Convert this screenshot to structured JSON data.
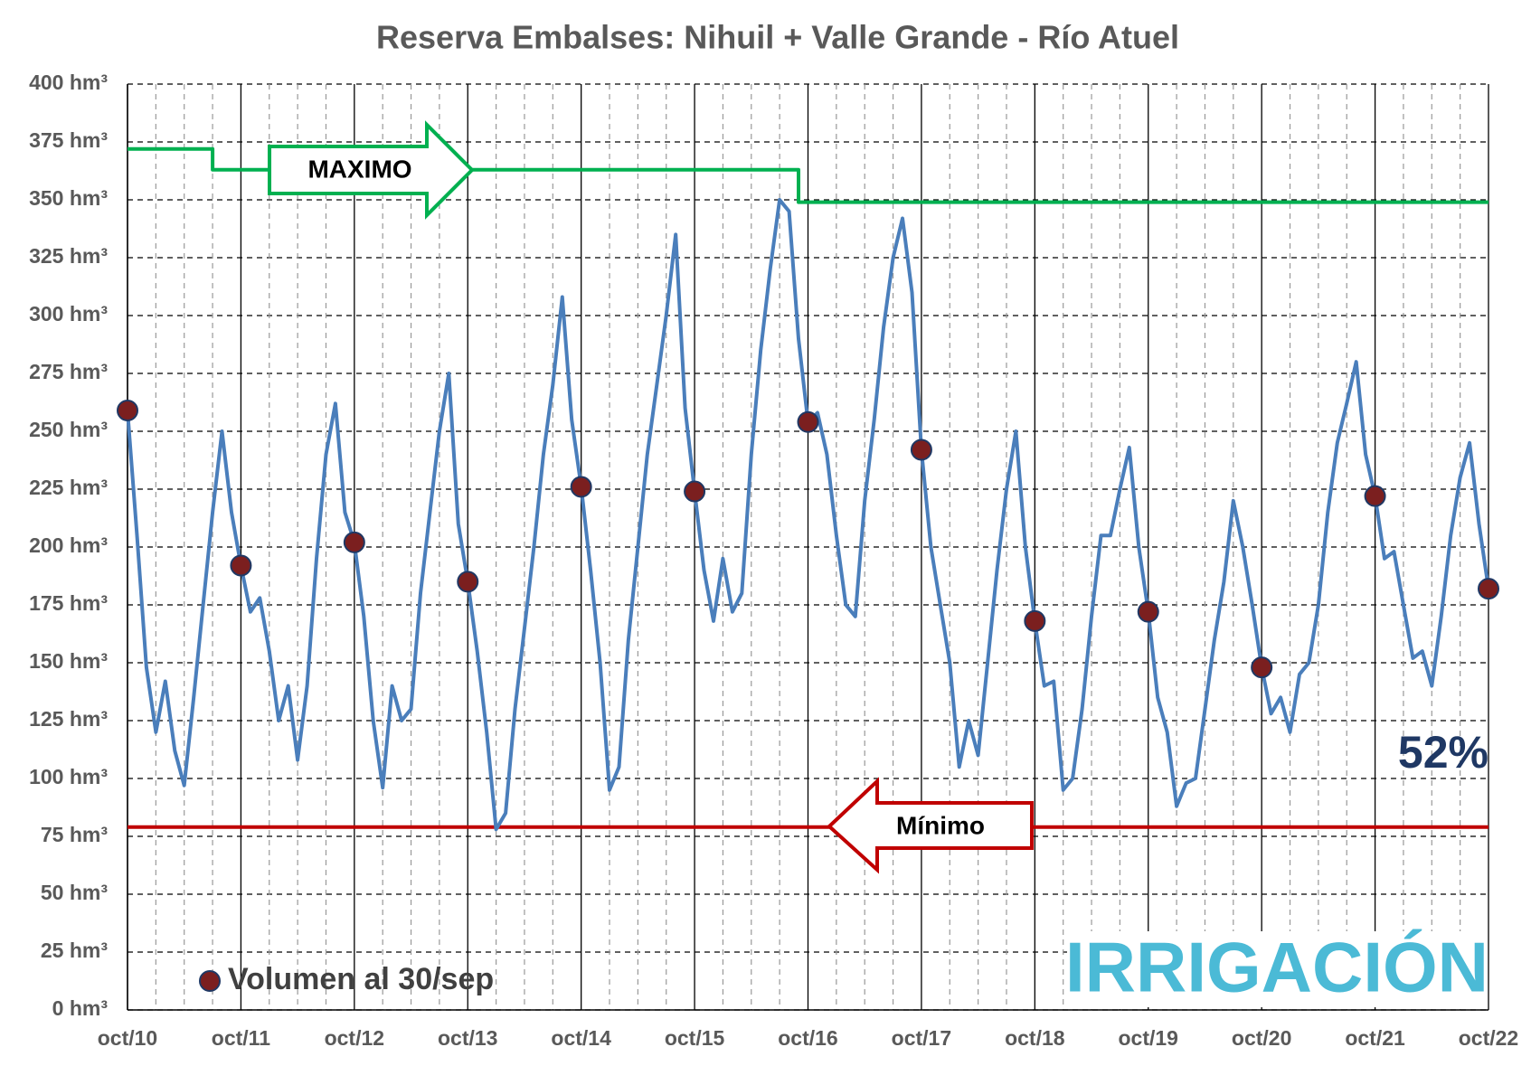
{
  "chart_data": {
    "type": "line",
    "title": "Reserva Embalses: Nihuil + Valle Grande - Río Atuel",
    "xlim": [
      "2010-10",
      "2022-10"
    ],
    "xticks": [
      {
        "value": "2010-10",
        "label": "oct/10"
      },
      {
        "value": "2011-10",
        "label": "oct/11"
      },
      {
        "value": "2012-10",
        "label": "oct/12"
      },
      {
        "value": "2013-10",
        "label": "oct/13"
      },
      {
        "value": "2014-10",
        "label": "oct/14"
      },
      {
        "value": "2015-10",
        "label": "oct/15"
      },
      {
        "value": "2016-10",
        "label": "oct/16"
      },
      {
        "value": "2017-10",
        "label": "oct/17"
      },
      {
        "value": "2018-10",
        "label": "oct/18"
      },
      {
        "value": "2019-10",
        "label": "oct/19"
      },
      {
        "value": "2020-10",
        "label": "oct/20"
      },
      {
        "value": "2021-10",
        "label": "oct/21"
      },
      {
        "value": "2022-10",
        "label": "oct/22"
      }
    ],
    "ylim": [
      0,
      400
    ],
    "yticks": [
      {
        "value": 0,
        "label": "0 hm³"
      },
      {
        "value": 25,
        "label": "25 hm³"
      },
      {
        "value": 50,
        "label": "50 hm³"
      },
      {
        "value": 75,
        "label": "75 hm³"
      },
      {
        "value": 100,
        "label": "100 hm³"
      },
      {
        "value": 125,
        "label": "125 hm³"
      },
      {
        "value": 150,
        "label": "150 hm³"
      },
      {
        "value": 175,
        "label": "175 hm³"
      },
      {
        "value": 200,
        "label": "200 hm³"
      },
      {
        "value": 225,
        "label": "225 hm³"
      },
      {
        "value": 250,
        "label": "250 hm³"
      },
      {
        "value": 275,
        "label": "275 hm³"
      },
      {
        "value": 300,
        "label": "300 hm³"
      },
      {
        "value": 325,
        "label": "325 hm³"
      },
      {
        "value": 350,
        "label": "350 hm³"
      },
      {
        "value": 375,
        "label": "375 hm³"
      },
      {
        "value": 400,
        "label": "400 hm³"
      }
    ],
    "grid": true,
    "series": [
      {
        "color": "#4a7ebb",
        "x": [
          "2010-10",
          "2010-11",
          "2010-12",
          "2011-01",
          "2011-02",
          "2011-03",
          "2011-04",
          "2011-05",
          "2011-06",
          "2011-07",
          "2011-08",
          "2011-09",
          "2011-10",
          "2011-11",
          "2011-12",
          "2012-01",
          "2012-02",
          "2012-03",
          "2012-04",
          "2012-05",
          "2012-06",
          "2012-07",
          "2012-08",
          "2012-09",
          "2012-10",
          "2012-11",
          "2012-12",
          "2013-01",
          "2013-02",
          "2013-03",
          "2013-04",
          "2013-05",
          "2013-06",
          "2013-07",
          "2013-08",
          "2013-09",
          "2013-10",
          "2013-11",
          "2013-12",
          "2014-01",
          "2014-02",
          "2014-03",
          "2014-04",
          "2014-05",
          "2014-06",
          "2014-07",
          "2014-08",
          "2014-09",
          "2014-10",
          "2014-11",
          "2014-12",
          "2015-01",
          "2015-02",
          "2015-03",
          "2015-04",
          "2015-05",
          "2015-06",
          "2015-07",
          "2015-08",
          "2015-09",
          "2015-10",
          "2015-11",
          "2015-12",
          "2016-01",
          "2016-02",
          "2016-03",
          "2016-04",
          "2016-05",
          "2016-06",
          "2016-07",
          "2016-08",
          "2016-09",
          "2016-10",
          "2016-11",
          "2016-12",
          "2017-01",
          "2017-02",
          "2017-03",
          "2017-04",
          "2017-05",
          "2017-06",
          "2017-07",
          "2017-08",
          "2017-09",
          "2017-10",
          "2017-11",
          "2017-12",
          "2018-01",
          "2018-02",
          "2018-03",
          "2018-04",
          "2018-05",
          "2018-06",
          "2018-07",
          "2018-08",
          "2018-09",
          "2018-10",
          "2018-11",
          "2018-12",
          "2019-01",
          "2019-02",
          "2019-03",
          "2019-04",
          "2019-05",
          "2019-06",
          "2019-07",
          "2019-08",
          "2019-09",
          "2019-10",
          "2019-11",
          "2019-12",
          "2020-01",
          "2020-02",
          "2020-03",
          "2020-04",
          "2020-05",
          "2020-06",
          "2020-07",
          "2020-08",
          "2020-09",
          "2020-10",
          "2020-11",
          "2020-12",
          "2021-01",
          "2021-02",
          "2021-03",
          "2021-04",
          "2021-05",
          "2021-06",
          "2021-07",
          "2021-08",
          "2021-09",
          "2021-10",
          "2021-11",
          "2021-12",
          "2022-01",
          "2022-02",
          "2022-03",
          "2022-04",
          "2022-05",
          "2022-06",
          "2022-07",
          "2022-08",
          "2022-09",
          "2022-10"
        ],
        "values": [
          259,
          205,
          148,
          120,
          142,
          112,
          97,
          135,
          175,
          215,
          250,
          215,
          192,
          172,
          178,
          155,
          125,
          140,
          108,
          140,
          195,
          240,
          262,
          215,
          202,
          170,
          125,
          96,
          140,
          125,
          130,
          180,
          215,
          250,
          275,
          210,
          185,
          155,
          120,
          78,
          85,
          130,
          165,
          200,
          240,
          270,
          308,
          255,
          226,
          190,
          150,
          95,
          105,
          160,
          200,
          240,
          270,
          300,
          335,
          260,
          224,
          190,
          168,
          195,
          172,
          180,
          240,
          285,
          320,
          350,
          345,
          290,
          254,
          258,
          240,
          205,
          175,
          170,
          220,
          255,
          295,
          325,
          342,
          310,
          242,
          200,
          175,
          150,
          105,
          125,
          110,
          150,
          190,
          225,
          250,
          200,
          168,
          140,
          142,
          95,
          100,
          130,
          170,
          205,
          205,
          225,
          243,
          200,
          172,
          135,
          120,
          88,
          98,
          100,
          130,
          160,
          185,
          220,
          200,
          175,
          148,
          128,
          135,
          120,
          145,
          150,
          175,
          215,
          245,
          262,
          280,
          240,
          222,
          195,
          198,
          175,
          152,
          155,
          140,
          170,
          205,
          230,
          245,
          210,
          182
        ]
      },
      {
        "name": "Volumen al 30/sep",
        "type": "scatter",
        "color": "#7b1f1f",
        "x": [
          "2010-10",
          "2011-10",
          "2012-10",
          "2013-10",
          "2014-10",
          "2015-10",
          "2016-10",
          "2017-10",
          "2018-10",
          "2019-10",
          "2020-10",
          "2021-10",
          "2022-10"
        ],
        "values": [
          259,
          192,
          202,
          185,
          226,
          224,
          254,
          242,
          168,
          172,
          148,
          222,
          182
        ]
      },
      {
        "color": "#00b050",
        "x": [
          "2010-10",
          "2011-07",
          "2011-07",
          "2016-09",
          "2016-09",
          "2022-10"
        ],
        "values": [
          372,
          372,
          363,
          363,
          349,
          349
        ]
      },
      {
        "color": "#c00000",
        "x": [
          "2010-10",
          "2022-10"
        ],
        "values": [
          79,
          79
        ]
      }
    ],
    "annotations": [
      "MAXIMO",
      "Mínimo",
      "52%",
      "IRRIGACIÓN"
    ]
  }
}
